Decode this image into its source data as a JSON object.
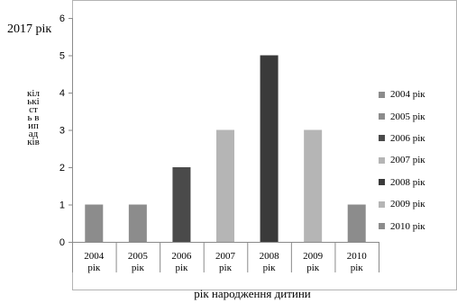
{
  "corner_title": "2017 рік",
  "chart_data": {
    "type": "bar",
    "categories": [
      "2004 рік",
      "2005 рік",
      "2006 рік",
      "2007 рік",
      "2008 рік",
      "2009 рік",
      "2010 рік"
    ],
    "values": [
      1,
      1,
      2,
      3,
      5,
      3,
      1
    ],
    "colors": [
      "#8c8c8c",
      "#8c8c8c",
      "#4a4a4a",
      "#b5b5b5",
      "#3a3a3a",
      "#b5b5b5",
      "#8c8c8c"
    ],
    "title": "",
    "xlabel": "рік народження дитини",
    "ylabel": "кількість випадків",
    "ylim": [
      0,
      6
    ],
    "yticks": [
      0,
      1,
      2,
      3,
      4,
      5,
      6
    ],
    "grid": false,
    "legend_position": "right",
    "legend": [
      {
        "label": "2004  рік",
        "color": "#8c8c8c"
      },
      {
        "label": "2005  рік",
        "color": "#8c8c8c"
      },
      {
        "label": "2006  рік",
        "color": "#4a4a4a"
      },
      {
        "label": "2007  рік",
        "color": "#b5b5b5"
      },
      {
        "label": "2008  рік",
        "color": "#3a3a3a"
      },
      {
        "label": "2009  рік",
        "color": "#b5b5b5"
      },
      {
        "label": "2010  рік",
        "color": "#8c8c8c"
      }
    ]
  }
}
